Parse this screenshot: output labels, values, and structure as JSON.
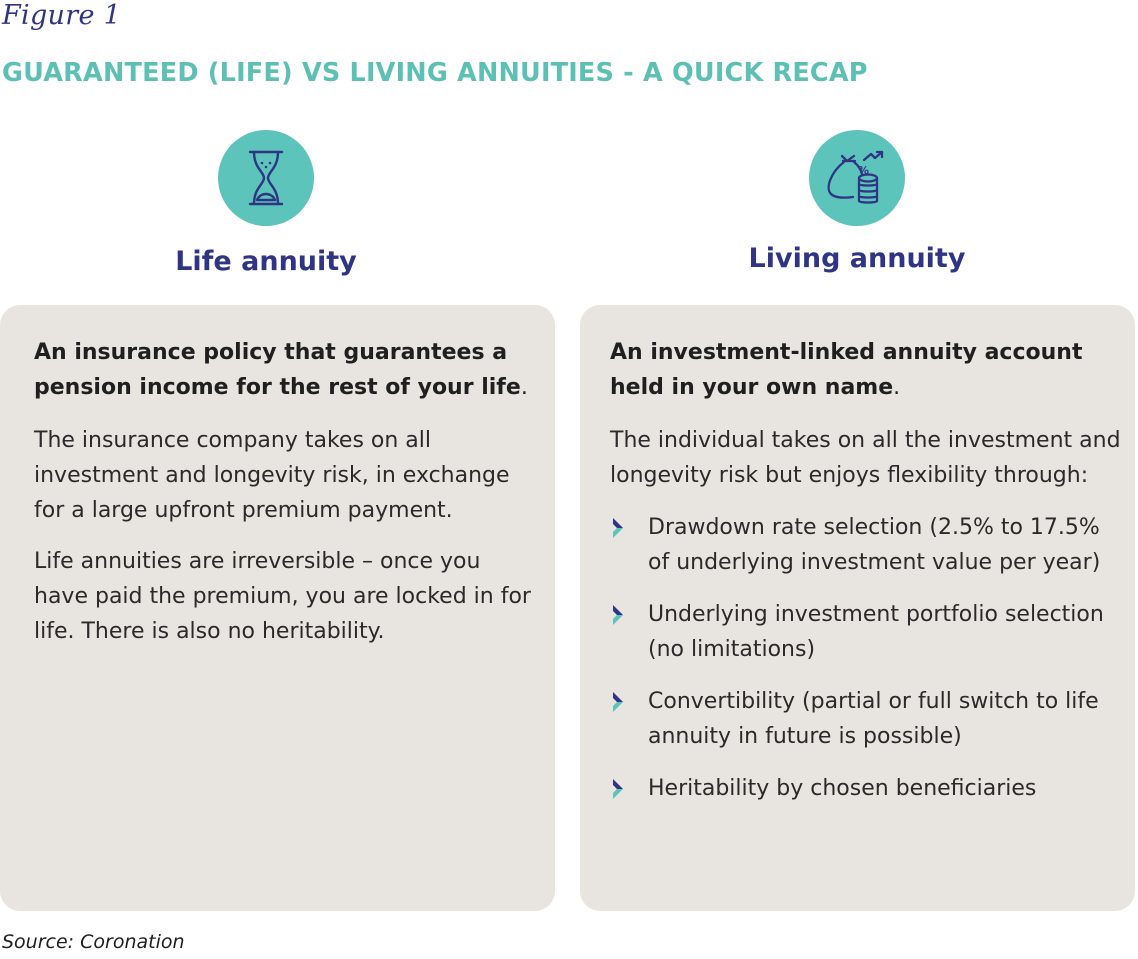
{
  "figure_label": "Figure 1",
  "title": "GUARANTEED (LIFE) VS LIVING ANNUITIES - A QUICK RECAP",
  "colors": {
    "accent_teal": "#5cc4bb",
    "title_teal": "#5cc0b4",
    "heading_navy": "#2f3584",
    "panel_bg": "#e8e5e0",
    "bullet_dark": "#2f3584",
    "bullet_light": "#5cc4bb"
  },
  "left": {
    "icon": "hourglass-icon",
    "heading": "Life annuity",
    "lead_bold": "An insurance policy that guarantees a pension income for the rest of your life",
    "lead_end": ".",
    "paragraphs": [
      "The insurance company takes on all investment and longevity risk, in exchange for a large upfront premium payment.",
      "Life annuities are irreversible – once you have paid the premium, you are locked in for life. There is also no heritability."
    ]
  },
  "right": {
    "icon": "money-bag-coins-growth-icon",
    "heading": "Living annuity",
    "lead_bold": "An investment-linked annuity account held in your own name",
    "lead_end": ".",
    "intro": "The individual takes on all the investment and longevity risk but enjoys flexibility through:",
    "bullets": [
      "Drawdown rate selection (2.5% to 17.5% of underlying investment value per year)",
      "Underlying investment portfolio selection (no limitations)",
      "Convertibility (partial or full switch to life annuity in future is possible)",
      "Heritability by chosen beneficiaries"
    ]
  },
  "source": "Source: Coronation"
}
